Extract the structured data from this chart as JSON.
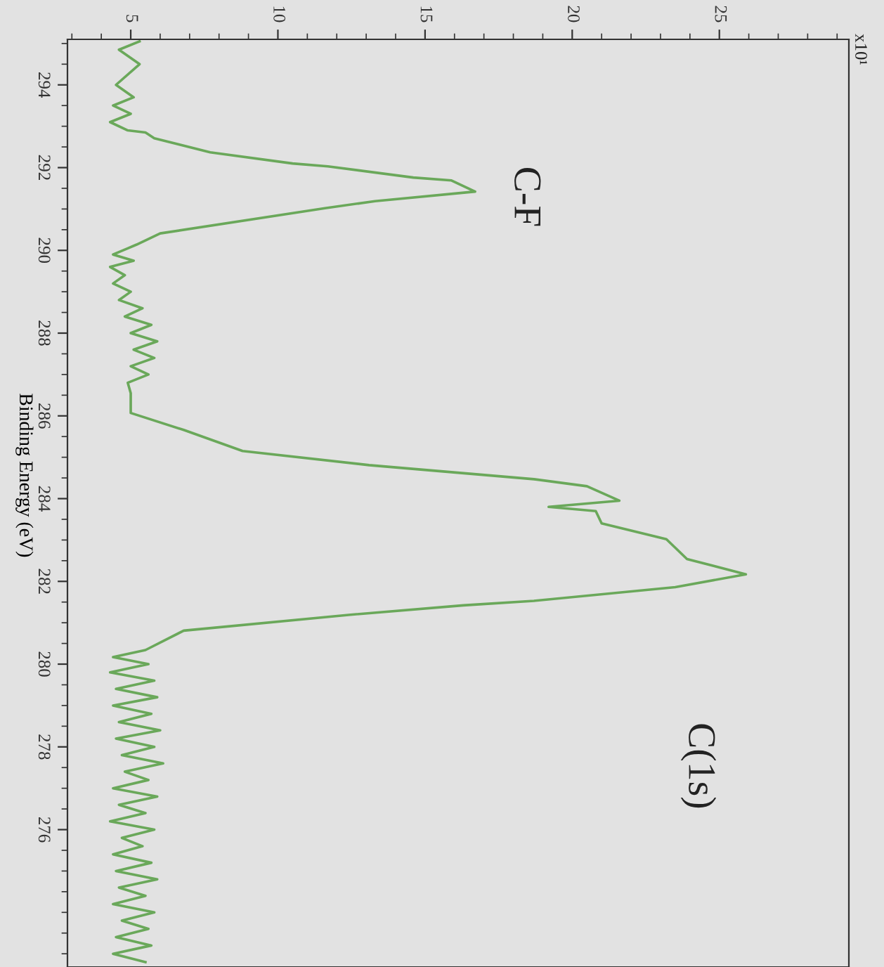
{
  "chart_data": {
    "type": "line",
    "orientation": "horizontal",
    "ylabel": "Binding Energy (eV)",
    "x": [
      295.05,
      294.85,
      294.5,
      294.0,
      293.7,
      293.5,
      293.3,
      293.1,
      292.9,
      292.85,
      292.71,
      292.37,
      292.1,
      292.03,
      291.76,
      291.69,
      291.42,
      291.19,
      291.02,
      290.41,
      290.14,
      290.05,
      289.9,
      289.75,
      289.6,
      289.4,
      289.2,
      289.0,
      288.8,
      288.6,
      288.4,
      288.2,
      288.0,
      287.8,
      287.6,
      287.4,
      287.2,
      287.0,
      286.8,
      286.55,
      286.07,
      285.66,
      285.15,
      284.81,
      284.47,
      284.3,
      283.95,
      283.8,
      283.7,
      283.4,
      283.02,
      282.54,
      282.17,
      281.86,
      281.53,
      281.42,
      281.19,
      280.81,
      280.34,
      280.17,
      280.0,
      279.8,
      279.6,
      279.4,
      279.2,
      279.0,
      278.8,
      278.6,
      278.4,
      278.2,
      278.0,
      277.8,
      277.6,
      277.4,
      277.2,
      277.0,
      276.8,
      276.6,
      276.4,
      276.2,
      276.0,
      275.8,
      275.6,
      275.4,
      275.2,
      275.0,
      274.8,
      274.6,
      274.4,
      274.2,
      274.0,
      273.8,
      273.6,
      273.4,
      273.2,
      273.0,
      272.8
    ],
    "series": [
      {
        "color": "#6aa85a",
        "values": [
          5.3,
          4.6,
          5.3,
          4.5,
          5.1,
          4.4,
          5.0,
          4.3,
          4.9,
          5.5,
          5.8,
          7.7,
          10.5,
          11.7,
          14.6,
          15.9,
          16.7,
          13.3,
          11.6,
          6.0,
          5.2,
          4.9,
          4.4,
          5.1,
          4.3,
          4.8,
          4.4,
          5.0,
          4.6,
          5.4,
          4.8,
          5.7,
          5.0,
          5.9,
          5.1,
          5.8,
          5.0,
          5.6,
          4.9,
          5.0,
          5.0,
          6.8,
          8.8,
          13.1,
          18.7,
          20.5,
          21.6,
          19.2,
          20.8,
          21.0,
          23.2,
          23.9,
          25.9,
          23.5,
          18.7,
          16.3,
          12.4,
          6.8,
          5.5,
          4.4,
          5.6,
          4.3,
          5.8,
          4.5,
          5.9,
          4.4,
          5.7,
          4.6,
          6.0,
          4.5,
          5.8,
          4.7,
          6.1,
          4.8,
          5.6,
          4.4,
          5.9,
          4.6,
          5.5,
          4.3,
          5.8,
          4.7,
          5.4,
          4.4,
          5.7,
          4.5,
          5.9,
          4.6,
          5.5,
          4.4,
          5.8,
          4.7,
          5.6,
          4.5,
          5.7,
          4.4,
          5.5
        ]
      }
    ],
    "xlim": [
      2.85,
      29.4
    ],
    "xticks": [
      5,
      10,
      15,
      20,
      25
    ],
    "ylim": [
      272.68,
      295.1
    ],
    "yticks": [
      294,
      292,
      290,
      288,
      286,
      284,
      282,
      280,
      278,
      276
    ],
    "annotations": [
      "C-F",
      "C(1s)",
      "x10¹"
    ],
    "grid": false,
    "legend": false,
    "marker": "none",
    "line_style": "solid"
  }
}
